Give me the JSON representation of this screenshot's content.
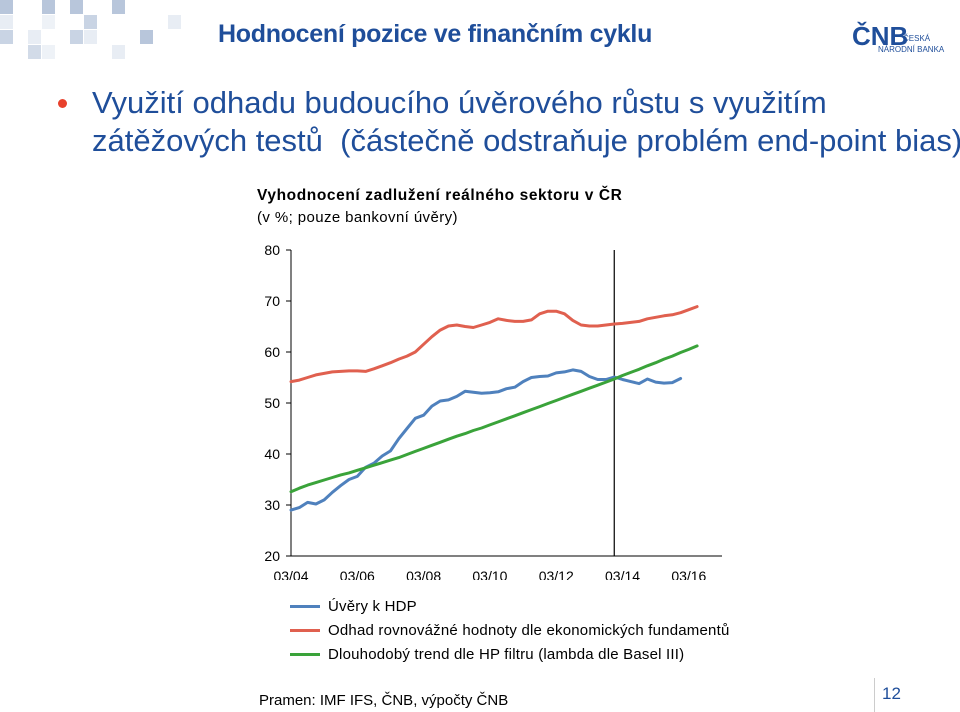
{
  "slide": {
    "title": "Hodnocení pozice ve finančním cyklu",
    "bullet_line1": "Využití odhadu budoucího úvěrového růstu s využitím",
    "bullet_line2": "zátěžových testů  (částečně odstraňuje problém end-point bias)",
    "source": "Pramen: IMF IFS, ČNB, výpočty ČNB",
    "page_number": "12"
  },
  "logo": {
    "mark": "ČNB",
    "line1": "ČESKÁ",
    "line2": "NÁRODNÍ BANKA"
  },
  "colors": {
    "title": "#1f4e9a",
    "bullet": "#e8412c",
    "series_blue": "#4f81bd",
    "series_red": "#e0604f",
    "series_green": "#3aa33a"
  },
  "chart_data": {
    "type": "line",
    "title": "Vyhodnocení zadlužení reálného sektoru v ČR",
    "subtitle": "(v %; pouze bankovní úvěry)",
    "ylim": [
      20,
      80
    ],
    "yticks": [
      "20",
      "30",
      "40",
      "50",
      "60",
      "70",
      "80"
    ],
    "xticks": [
      "03/04",
      "03/06",
      "03/08",
      "03/10",
      "03/12",
      "03/14",
      "03/16"
    ],
    "x_start": "03/04",
    "x_step_months": 3,
    "vertical_marker": "12/13",
    "grid": false,
    "legend_position": "bottom",
    "series": [
      {
        "name": "Úvěry k HDP",
        "color": "#4f81bd",
        "values": [
          29.0,
          29.5,
          30.5,
          30.2,
          31.0,
          32.5,
          33.8,
          35.0,
          35.6,
          37.4,
          38.2,
          39.6,
          40.6,
          43.0,
          45.0,
          47.0,
          47.6,
          49.4,
          50.4,
          50.6,
          51.3,
          52.3,
          52.1,
          51.9,
          52.0,
          52.2,
          52.8,
          53.1,
          54.2,
          55.0,
          55.2,
          55.3,
          55.9,
          56.1,
          56.5,
          56.2,
          55.2,
          54.6,
          54.6,
          55.1,
          54.6,
          54.2,
          53.8,
          54.7,
          54.1,
          53.9,
          54.0,
          54.8
        ]
      },
      {
        "name": "Odhad rovnovážné hodnoty dle ekonomických fundamentů",
        "color": "#e0604f",
        "values": [
          54.2,
          54.5,
          55.0,
          55.5,
          55.8,
          56.1,
          56.2,
          56.3,
          56.3,
          56.2,
          56.7,
          57.3,
          57.9,
          58.6,
          59.2,
          60.0,
          61.5,
          63.0,
          64.3,
          65.1,
          65.3,
          65.0,
          64.8,
          65.3,
          65.8,
          66.5,
          66.2,
          66.0,
          66.0,
          66.3,
          67.5,
          68.0,
          68.0,
          67.5,
          66.2,
          65.3,
          65.1,
          65.1,
          65.3,
          65.5,
          65.6,
          65.8,
          66.0,
          66.5,
          66.8,
          67.1,
          67.3,
          67.7,
          68.3,
          68.9
        ]
      },
      {
        "name": "Dlouhodobý trend dle HP filtru (lambda dle Basel III)",
        "color": "#3aa33a",
        "values": [
          32.6,
          33.3,
          33.9,
          34.4,
          34.9,
          35.4,
          35.9,
          36.3,
          36.8,
          37.3,
          37.8,
          38.3,
          38.8,
          39.3,
          39.9,
          40.5,
          41.1,
          41.7,
          42.3,
          42.9,
          43.5,
          44.0,
          44.6,
          45.1,
          45.7,
          46.3,
          46.9,
          47.5,
          48.1,
          48.7,
          49.3,
          49.9,
          50.5,
          51.1,
          51.7,
          52.3,
          52.9,
          53.5,
          54.1,
          54.7,
          55.4,
          56.0,
          56.6,
          57.3,
          57.9,
          58.6,
          59.2,
          59.9,
          60.5,
          61.2
        ]
      }
    ]
  }
}
